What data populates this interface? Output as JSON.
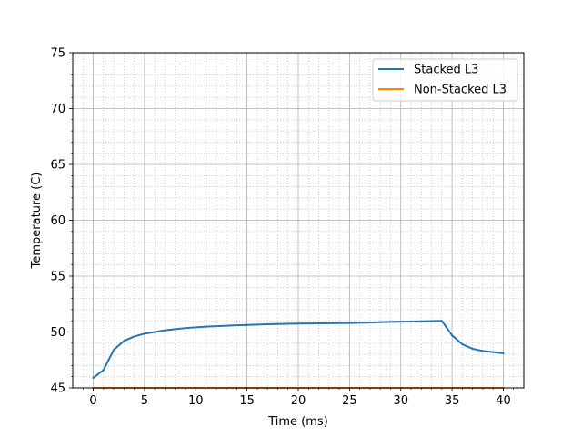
{
  "chart_data": {
    "type": "line",
    "title": "",
    "xlabel": "Time (ms)",
    "ylabel": "Temperature (C)",
    "xlim": [
      -2,
      42
    ],
    "ylim": [
      45,
      75
    ],
    "xticks": [
      0,
      5,
      10,
      15,
      20,
      25,
      30,
      35,
      40
    ],
    "xtick_labels": [
      "0",
      "5",
      "10",
      "15",
      "20",
      "25",
      "30",
      "35",
      "40"
    ],
    "yticks": [
      45,
      50,
      55,
      60,
      65,
      70,
      75
    ],
    "ytick_labels": [
      "45",
      "50",
      "55",
      "60",
      "65",
      "70",
      "75"
    ],
    "grid": true,
    "minor_grid": true,
    "legend_position": "top-right",
    "x": [
      0,
      1,
      2,
      3,
      4,
      5,
      6,
      7,
      8,
      9,
      10,
      11,
      12,
      13,
      14,
      15,
      16,
      17,
      18,
      19,
      20,
      21,
      22,
      23,
      24,
      25,
      26,
      27,
      28,
      29,
      30,
      31,
      32,
      33,
      34,
      35,
      36,
      37,
      38,
      39,
      40
    ],
    "series": [
      {
        "name": "Stacked L3",
        "color": "#1f77b4",
        "values": [
          45.9,
          46.6,
          48.4,
          49.2,
          49.6,
          49.85,
          50.0,
          50.15,
          50.25,
          50.35,
          50.42,
          50.48,
          50.52,
          50.56,
          50.6,
          50.63,
          50.66,
          50.69,
          50.71,
          50.73,
          50.75,
          50.76,
          50.77,
          50.78,
          50.79,
          50.8,
          50.82,
          50.84,
          50.87,
          50.9,
          50.92,
          50.94,
          50.96,
          50.98,
          51.0,
          49.7,
          48.9,
          48.5,
          48.3,
          48.2,
          48.1
        ]
      },
      {
        "name": "Non-Stacked L3",
        "color": "#ff7f0e",
        "values": [
          45,
          45,
          45,
          45,
          45,
          45,
          45,
          45,
          45,
          45,
          45,
          45,
          45,
          45,
          45,
          45,
          45,
          45,
          45,
          45,
          45,
          45,
          45,
          45,
          45,
          45,
          45,
          45,
          45,
          45,
          45,
          45,
          45,
          45,
          45,
          45,
          45,
          45,
          45,
          45,
          45
        ]
      }
    ]
  }
}
